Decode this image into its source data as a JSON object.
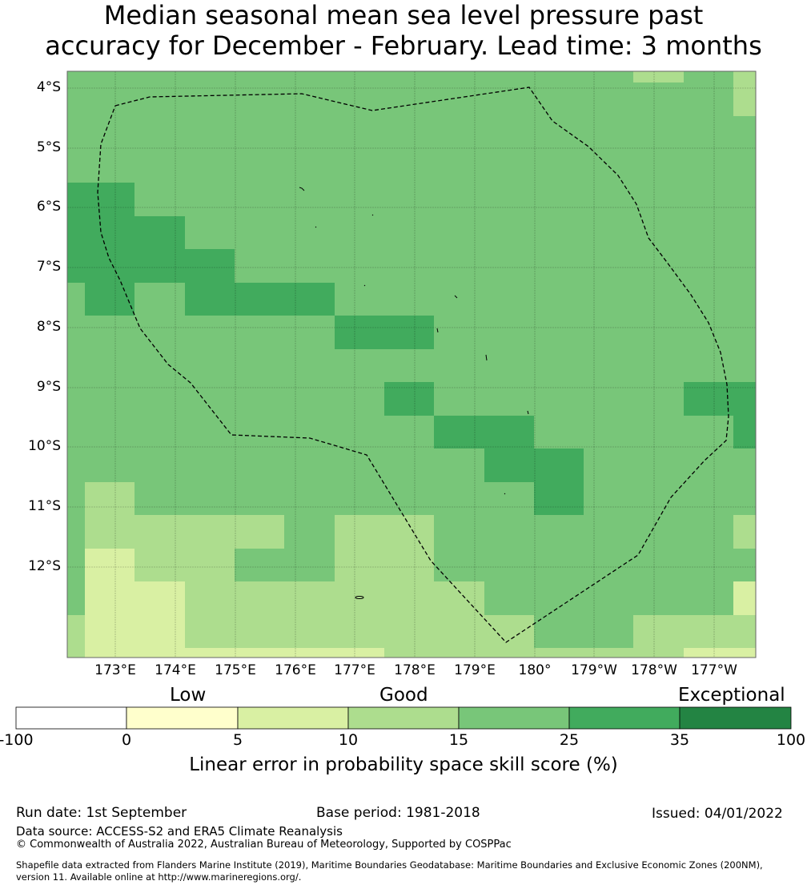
{
  "title": {
    "line1": "Median seasonal mean sea level pressure past",
    "line2": "accuracy for December - February. Lead time: 3 months"
  },
  "map": {
    "lat_labels": [
      "4°S",
      "5°S",
      "6°S",
      "7°S",
      "8°S",
      "9°S",
      "10°S",
      "11°S",
      "12°S"
    ],
    "lon_labels": [
      "173°E",
      "174°E",
      "175°E",
      "176°E",
      "177°E",
      "178°E",
      "179°E",
      "180°",
      "179°W",
      "178°W",
      "177°W"
    ],
    "eez_outline": "dashed black",
    "land": "small islands drawn as thin black outlines"
  },
  "colorbar": {
    "categories": {
      "low": "Low",
      "good": "Good",
      "exceptional": "Exceptional"
    },
    "ticks": [
      "-100",
      "0",
      "5",
      "10",
      "15",
      "25",
      "35",
      "100"
    ],
    "colors": [
      "#ffffff",
      "#ffffcc",
      "#d9f0a3",
      "#addd8e",
      "#78c679",
      "#41ab5d",
      "#238443"
    ],
    "label": "Linear error in probability space skill score (%)"
  },
  "footer": {
    "run_date": "Run date: 1st September",
    "base_period": "Base period: 1981-2018",
    "issued": "Issued: 04/01/2022",
    "data_source": "Data source: ACCESS-S2 and ERA5 Climate Reanalysis",
    "copyright": "© Commonwealth of Australia 2022, Australian Bureau of Meteorology, Supported by COSPPac",
    "shapefile_line1": "Shapefile data extracted from Flanders Marine Institute (2019), Maritime Boundaries Geodatabase: Maritime Boundaries and Exclusive Economic Zones (200NM),",
    "shapefile_line2": "version 11. Available online at http://www.marineregions.org/."
  }
}
